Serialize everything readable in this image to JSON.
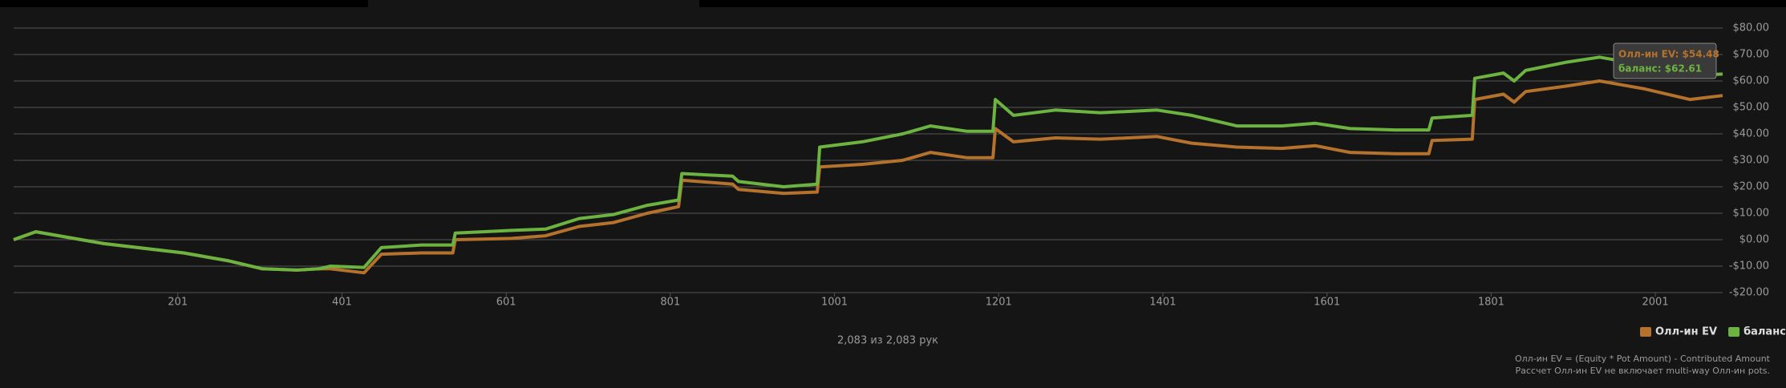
{
  "chart_data": {
    "type": "line",
    "x": [
      1,
      28,
      56,
      111,
      167,
      208,
      263,
      304,
      346,
      373,
      387,
      428,
      449,
      498,
      536,
      539,
      608,
      649,
      690,
      732,
      773,
      811,
      815,
      877,
      884,
      939,
      980,
      983,
      1035,
      1084,
      1118,
      1162,
      1194,
      1197,
      1219,
      1270,
      1325,
      1394,
      1436,
      1491,
      1546,
      1587,
      1629,
      1684,
      1725,
      1729,
      1778,
      1781,
      1816,
      1829,
      1843,
      1891,
      1933,
      1988,
      2043,
      2083
    ],
    "series": [
      {
        "name": "Олл-ин EV",
        "color": "#b5722c",
        "values": [
          0,
          3,
          1.5,
          -1.5,
          -3.5,
          -5,
          -8,
          -11,
          -11.5,
          -11,
          -11,
          -12.5,
          -5.5,
          -5,
          -5,
          0,
          0.5,
          1.5,
          5,
          6.5,
          10,
          12.5,
          22.5,
          21,
          19,
          17.5,
          18,
          27.5,
          28.5,
          30,
          33,
          31,
          31,
          42,
          37,
          38.5,
          38,
          39,
          36.5,
          35,
          34.5,
          35.5,
          33,
          32.5,
          32.5,
          37.5,
          38,
          53,
          55,
          52,
          56,
          58,
          60,
          57,
          53,
          54.48
        ]
      },
      {
        "name": "баланс",
        "color": "#6cb33f",
        "values": [
          0,
          3,
          1.5,
          -1.5,
          -3.5,
          -5,
          -8,
          -11,
          -11.5,
          -11,
          -10,
          -10.5,
          -3,
          -2,
          -2,
          2.5,
          3.5,
          4,
          8,
          9.5,
          13,
          15,
          25,
          24,
          22,
          20,
          21,
          35,
          37,
          40,
          43,
          41,
          41,
          53,
          47,
          49,
          48,
          49,
          47,
          43,
          43,
          44,
          42,
          41.5,
          41.5,
          46,
          47,
          61,
          63,
          60,
          64,
          67,
          69,
          66,
          62,
          62.61
        ]
      }
    ],
    "xlim": [
      1,
      2083
    ],
    "xticks": [
      201,
      401,
      601,
      801,
      1001,
      1201,
      1401,
      1601,
      1801,
      2001
    ],
    "ylim": [
      -20,
      80
    ],
    "yticks": [
      {
        "value": -20,
        "label": "-$20.00"
      },
      {
        "value": -10,
        "label": "-$10.00"
      },
      {
        "value": 0,
        "label": "$0.00"
      },
      {
        "value": 10,
        "label": "$10.00"
      },
      {
        "value": 20,
        "label": "$20.00"
      },
      {
        "value": 30,
        "label": "$30.00"
      },
      {
        "value": 40,
        "label": "$40.00"
      },
      {
        "value": 50,
        "label": "$50.00"
      },
      {
        "value": 60,
        "label": "$60.00"
      },
      {
        "value": 70,
        "label": "$70.00"
      },
      {
        "value": 80,
        "label": "$80.00"
      }
    ],
    "grid": true,
    "legend": "bottom-right",
    "tooltip": [
      "Олл-ин EV: $54.48",
      "баланс: $62.61"
    ],
    "hands_count": "2,083 из 2,083 рук",
    "footnotes": [
      "Олл-ин EV = (Equity * Pot Amount) - Contributed Amount",
      "Рассчет Олл-ин EV не включает multi-way Олл-ин pots."
    ]
  }
}
